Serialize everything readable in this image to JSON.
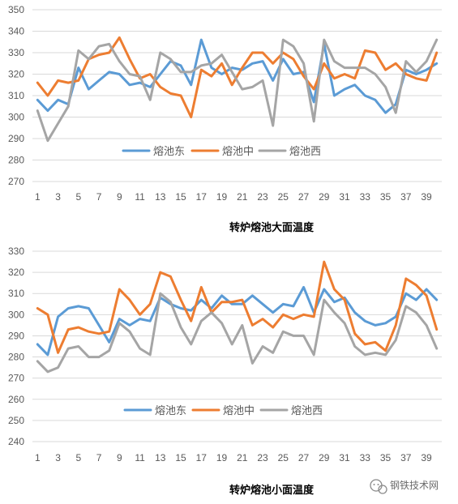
{
  "colors": {
    "east": "#5b9bd5",
    "middle": "#ed7d31",
    "west": "#a5a5a5"
  },
  "watermark": {
    "icon": "wechat-icon",
    "text": "钢铁技术网"
  },
  "chart_data": [
    {
      "type": "line",
      "title": "转炉熔池大面温度",
      "ylim": [
        270,
        350
      ],
      "yticks": [
        270,
        280,
        290,
        300,
        310,
        320,
        330,
        340,
        350
      ],
      "x": [
        1,
        2,
        3,
        4,
        5,
        6,
        7,
        8,
        9,
        10,
        11,
        12,
        13,
        14,
        15,
        16,
        17,
        18,
        19,
        20,
        21,
        22,
        23,
        24,
        25,
        26,
        27,
        28,
        29,
        30,
        31,
        32,
        33,
        34,
        35,
        36,
        37,
        38,
        39,
        40
      ],
      "xtick_labels": [
        "1",
        "3",
        "5",
        "7",
        "9",
        "11",
        "13",
        "15",
        "17",
        "19",
        "21",
        "23",
        "25",
        "27",
        "29",
        "31",
        "33",
        "35",
        "37",
        "39"
      ],
      "grid": true,
      "legend": "inside-bottom",
      "series": [
        {
          "name": "熔池东",
          "color": "#5b9bd5",
          "values": [
            308,
            303,
            308,
            306,
            323,
            313,
            317,
            321,
            320,
            315,
            316,
            314,
            320,
            326,
            324,
            315,
            336,
            323,
            320,
            323,
            322,
            325,
            326,
            317,
            327,
            320,
            321,
            307,
            334,
            310,
            313,
            315,
            310,
            308,
            302,
            306,
            322,
            320,
            322,
            325
          ]
        },
        {
          "name": "熔池中",
          "color": "#ed7d31",
          "values": [
            316,
            310,
            317,
            316,
            317,
            327,
            329,
            330,
            337,
            327,
            318,
            320,
            314,
            311,
            310,
            300,
            322,
            319,
            325,
            315,
            323,
            330,
            330,
            325,
            330,
            327,
            319,
            313,
            325,
            318,
            320,
            318,
            331,
            330,
            322,
            325,
            320,
            318,
            317,
            330
          ]
        },
        {
          "name": "熔池西",
          "color": "#a5a5a5",
          "values": [
            303,
            289,
            297,
            305,
            331,
            327,
            333,
            334,
            326,
            320,
            319,
            308,
            330,
            327,
            321,
            321,
            324,
            325,
            329,
            321,
            313,
            314,
            317,
            296,
            336,
            333,
            325,
            298,
            336,
            326,
            323,
            323,
            323,
            320,
            314,
            302,
            326,
            321,
            326,
            336
          ]
        }
      ]
    },
    {
      "type": "line",
      "title": "转炉熔池小面温度",
      "ylim": [
        240,
        330
      ],
      "yticks": [
        240,
        250,
        260,
        270,
        280,
        290,
        300,
        310,
        320,
        330
      ],
      "x": [
        1,
        2,
        3,
        4,
        5,
        6,
        7,
        8,
        9,
        10,
        11,
        12,
        13,
        14,
        15,
        16,
        17,
        18,
        19,
        20,
        21,
        22,
        23,
        24,
        25,
        26,
        27,
        28,
        29,
        30,
        31,
        32,
        33,
        34,
        35,
        36,
        37,
        38,
        39,
        40
      ],
      "xtick_labels": [
        "1",
        "3",
        "5",
        "7",
        "9",
        "11",
        "13",
        "15",
        "17",
        "19",
        "21",
        "23",
        "25",
        "27",
        "29",
        "31",
        "33",
        "35",
        "37",
        "39"
      ],
      "grid": true,
      "legend": "inside-bottom",
      "series": [
        {
          "name": "熔池东",
          "color": "#5b9bd5",
          "values": [
            286,
            281,
            299,
            303,
            304,
            303,
            295,
            287,
            298,
            295,
            298,
            297,
            308,
            305,
            303,
            302,
            307,
            303,
            309,
            305,
            305,
            309,
            305,
            301,
            305,
            304,
            313,
            301,
            312,
            306,
            308,
            301,
            297,
            295,
            296,
            299,
            310,
            307,
            312,
            307
          ]
        },
        {
          "name": "熔池中",
          "color": "#ed7d31",
          "values": [
            303,
            300,
            282,
            293,
            294,
            292,
            291,
            292,
            312,
            307,
            300,
            305,
            320,
            318,
            307,
            297,
            313,
            301,
            306,
            306,
            307,
            295,
            298,
            294,
            300,
            298,
            300,
            299,
            325,
            312,
            307,
            291,
            286,
            287,
            283,
            295,
            317,
            314,
            309,
            293
          ]
        },
        {
          "name": "熔池西",
          "color": "#a5a5a5",
          "values": [
            278,
            273,
            275,
            284,
            285,
            280,
            280,
            283,
            296,
            292,
            284,
            281,
            310,
            306,
            294,
            286,
            297,
            301,
            296,
            286,
            295,
            277,
            285,
            282,
            292,
            290,
            290,
            281,
            307,
            301,
            296,
            285,
            281,
            282,
            281,
            288,
            304,
            301,
            295,
            284
          ]
        }
      ]
    }
  ]
}
